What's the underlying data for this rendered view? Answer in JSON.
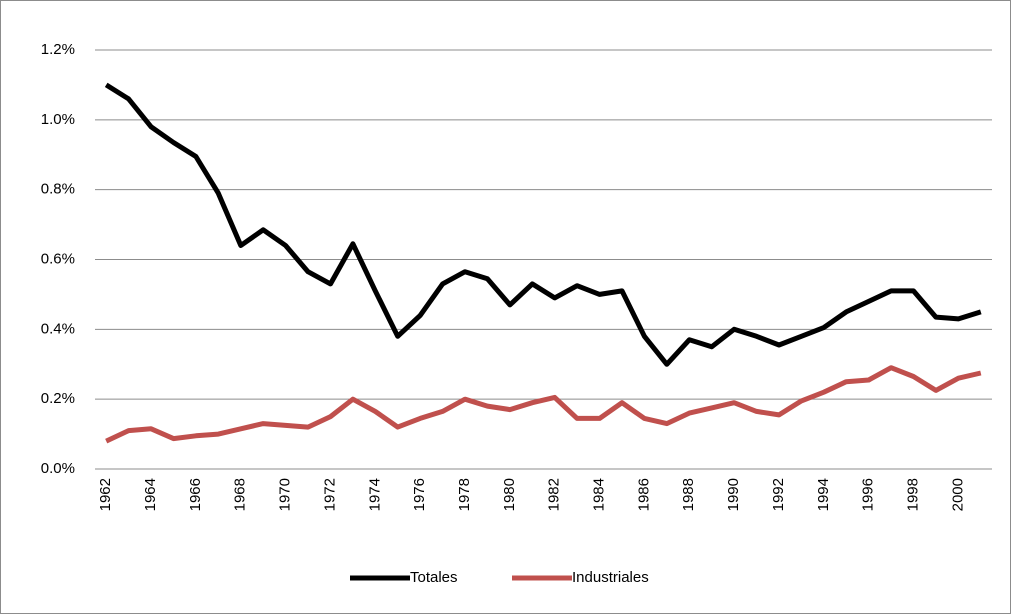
{
  "chart_data": {
    "type": "line",
    "categories": [
      "1962",
      null,
      "1964",
      null,
      "1966",
      null,
      "1968",
      null,
      "1970",
      null,
      "1972",
      null,
      "1974",
      null,
      "1976",
      null,
      "1978",
      null,
      "1980",
      null,
      "1982",
      null,
      "1984",
      null,
      "1986",
      null,
      "1988",
      null,
      "1990",
      null,
      "1992",
      null,
      "1994",
      null,
      "1996",
      null,
      "1998",
      null,
      "2000",
      null
    ],
    "series": [
      {
        "name": "Totales",
        "color": "#000000",
        "values": [
          1.1,
          1.06,
          0.98,
          0.935,
          0.895,
          0.79,
          0.64,
          0.685,
          0.64,
          0.565,
          0.53,
          0.645,
          0.51,
          0.38,
          0.44,
          0.53,
          0.565,
          0.545,
          0.47,
          0.53,
          0.49,
          0.525,
          0.5,
          0.51,
          0.38,
          0.3,
          0.37,
          0.35,
          0.4,
          0.38,
          0.355,
          0.38,
          0.405,
          0.45,
          0.48,
          0.51,
          0.51,
          0.435,
          0.43,
          0.45
        ]
      },
      {
        "name": "Industriales",
        "color": "#c0504d",
        "values": [
          0.08,
          0.11,
          0.115,
          0.087,
          0.095,
          0.1,
          0.115,
          0.13,
          0.125,
          0.12,
          0.15,
          0.2,
          0.165,
          0.12,
          0.145,
          0.165,
          0.2,
          0.18,
          0.17,
          0.19,
          0.205,
          0.145,
          0.145,
          0.19,
          0.145,
          0.13,
          0.16,
          0.175,
          0.19,
          0.165,
          0.155,
          0.195,
          0.22,
          0.25,
          0.255,
          0.29,
          0.265,
          0.225,
          0.26,
          0.275
        ]
      }
    ],
    "ylim": [
      0,
      1.2
    ],
    "yticks": [
      {
        "value": 0,
        "label": "0.0%"
      },
      {
        "value": 0.2,
        "label": "0.2%"
      },
      {
        "value": 0.4,
        "label": "0.4%"
      },
      {
        "value": 0.6,
        "label": "0.6%"
      },
      {
        "value": 0.8,
        "label": "0.8%"
      },
      {
        "value": 1.0,
        "label": "1.0%"
      },
      {
        "value": 1.2,
        "label": "1.2%"
      }
    ],
    "grid": true,
    "legend": "bottom"
  }
}
